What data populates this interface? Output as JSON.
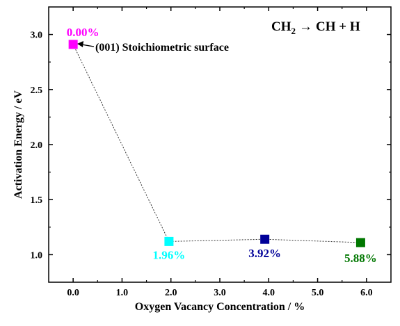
{
  "chart_data": {
    "type": "scatter",
    "xlabel": "Oxygen Vacancy Concentration / %",
    "ylabel": "Activation Energy / eV",
    "xlim": [
      -0.5,
      6.5
    ],
    "ylim": [
      0.75,
      3.25
    ],
    "xticks": [
      0.0,
      1.0,
      2.0,
      3.0,
      4.0,
      5.0,
      6.0
    ],
    "xtick_labels": [
      "0.0",
      "1.0",
      "2.0",
      "3.0",
      "4.0",
      "5.0",
      "6.0"
    ],
    "yticks": [
      1.0,
      1.5,
      2.0,
      2.5,
      3.0
    ],
    "ytick_labels": [
      "1.0",
      "1.5",
      "2.0",
      "2.5",
      "3.0"
    ],
    "grid": false,
    "connector": "dotted",
    "points": [
      {
        "x": 0.0,
        "y": 2.91,
        "label": "0.00%",
        "color": "#ff00ff"
      },
      {
        "x": 1.96,
        "y": 1.12,
        "label": "1.96%",
        "color": "#00ffff"
      },
      {
        "x": 3.92,
        "y": 1.14,
        "label": "3.92%",
        "color": "#000099"
      },
      {
        "x": 5.88,
        "y": 1.11,
        "label": "5.88%",
        "color": "#007700"
      }
    ],
    "annotation": "(001) Stoichiometric surface",
    "reaction": {
      "lhs": "CH",
      "lhs_sub": "2",
      "arrow": "→",
      "rhs": "CH + H"
    }
  }
}
